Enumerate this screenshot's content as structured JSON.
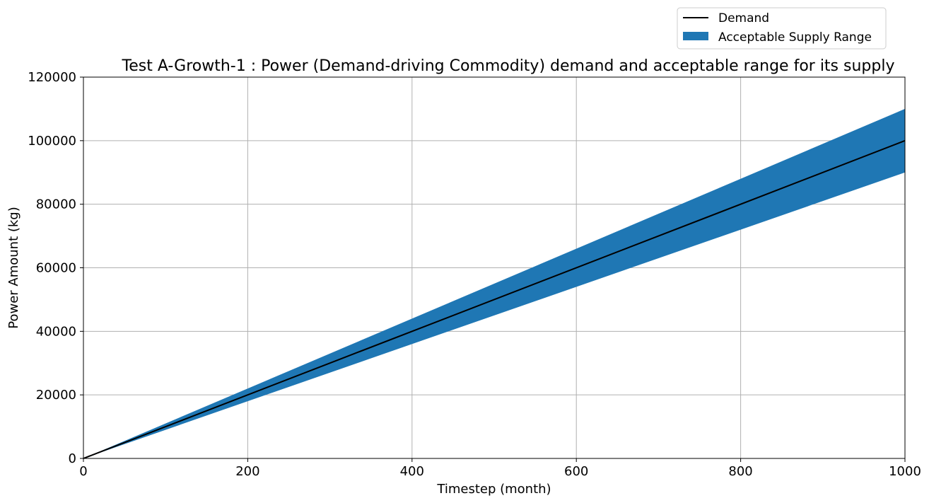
{
  "chart_data": {
    "type": "line",
    "title": "Test A-Growth-1 : Power (Demand-driving Commodity) demand and acceptable range for its supply",
    "xlabel": "Timestep (month)",
    "ylabel": "Power Amount (kg)",
    "xlim": [
      0,
      1000
    ],
    "ylim": [
      0,
      120000
    ],
    "x_ticks": [
      0,
      200,
      400,
      600,
      800,
      1000
    ],
    "y_ticks": [
      0,
      20000,
      40000,
      60000,
      80000,
      100000,
      120000
    ],
    "grid": true,
    "legend_position": "top-right, above plot",
    "series": [
      {
        "name": "Demand",
        "kind": "line",
        "color": "#000000",
        "x": [
          0,
          1000
        ],
        "y": [
          0,
          100000
        ]
      },
      {
        "name": "Acceptable Supply Range",
        "kind": "band",
        "color": "#1f77b4",
        "x": [
          0,
          1000
        ],
        "lower": [
          0,
          90000
        ],
        "upper": [
          0,
          110000
        ]
      }
    ]
  }
}
